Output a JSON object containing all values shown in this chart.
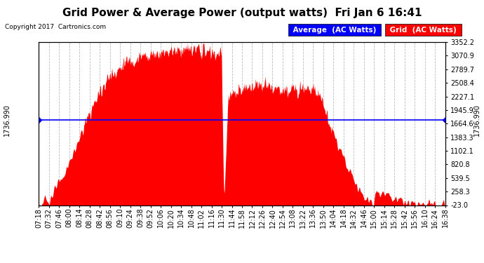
{
  "title": "Grid Power & Average Power (output watts)  Fri Jan 6 16:41",
  "copyright": "Copyright 2017  Cartronics.com",
  "average_value": 1736.99,
  "y_min": -23.0,
  "y_max": 3352.2,
  "y_ticks": [
    3352.2,
    3070.9,
    2789.7,
    2508.4,
    2227.1,
    1945.9,
    1664.6,
    1383.3,
    1102.1,
    820.8,
    539.5,
    258.3,
    -23.0
  ],
  "background_color": "#ffffff",
  "fill_color": "#ff0000",
  "avg_line_color": "#0000ff",
  "legend_avg_bg": "#0000ff",
  "legend_grid_bg": "#ff0000",
  "grid_color": "#bbbbbb",
  "title_fontsize": 11,
  "tick_fontsize": 7,
  "x_tick_labels": [
    "07:18",
    "07:32",
    "07:46",
    "08:00",
    "08:14",
    "08:28",
    "08:42",
    "08:56",
    "09:10",
    "09:24",
    "09:38",
    "09:52",
    "10:06",
    "10:20",
    "10:34",
    "10:48",
    "11:02",
    "11:16",
    "11:30",
    "11:44",
    "11:58",
    "12:12",
    "12:26",
    "12:40",
    "12:54",
    "13:08",
    "13:22",
    "13:36",
    "13:50",
    "14:04",
    "14:18",
    "14:32",
    "14:46",
    "15:00",
    "15:14",
    "15:28",
    "15:42",
    "15:56",
    "16:10",
    "16:24",
    "16:38"
  ]
}
